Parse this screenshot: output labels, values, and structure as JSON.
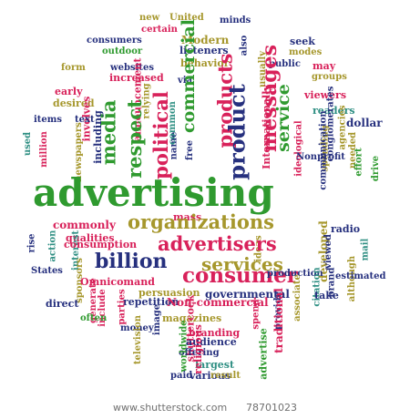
{
  "palette": {
    "green": "#2f9a2f",
    "red": "#d8215a",
    "blue": "#26307e",
    "olive": "#a6972c",
    "teal": "#2f8f83"
  },
  "words": [
    {
      "text": "new",
      "c": "olive"
    },
    {
      "text": "United",
      "c": "olive"
    },
    {
      "text": "minds",
      "c": "blue"
    },
    {
      "text": "certain",
      "c": "red"
    },
    {
      "text": "consumers",
      "c": "blue"
    },
    {
      "text": "Modern",
      "c": "olive"
    },
    {
      "text": "seek",
      "c": "blue"
    },
    {
      "text": "outdoor",
      "c": "green"
    },
    {
      "text": "listeners",
      "c": "blue"
    },
    {
      "text": "modes",
      "c": "olive"
    },
    {
      "text": "websites",
      "c": "blue"
    },
    {
      "text": "behavior",
      "c": "olive"
    },
    {
      "text": "also",
      "c": "blue"
    },
    {
      "text": "public",
      "c": "blue"
    },
    {
      "text": "may",
      "c": "red"
    },
    {
      "text": "form",
      "c": "olive"
    },
    {
      "text": "increased",
      "c": "red"
    },
    {
      "text": "groups",
      "c": "olive"
    },
    {
      "text": "usually",
      "c": "olive"
    },
    {
      "text": "via",
      "c": "blue"
    },
    {
      "text": "viewers",
      "c": "red"
    },
    {
      "text": "early",
      "c": "red"
    },
    {
      "text": "desired",
      "c": "olive"
    },
    {
      "text": "involves",
      "c": "red"
    },
    {
      "text": "commercial",
      "c": "green"
    },
    {
      "text": "messages",
      "c": "red"
    },
    {
      "text": "products",
      "c": "red"
    },
    {
      "text": "readers",
      "c": "teal"
    },
    {
      "text": "items",
      "c": "blue"
    },
    {
      "text": "text",
      "c": "blue"
    },
    {
      "text": "announcement",
      "c": "red"
    },
    {
      "text": "media",
      "c": "green"
    },
    {
      "text": "relying",
      "c": "olive"
    },
    {
      "text": "name",
      "c": "blue"
    },
    {
      "text": "Internationally",
      "c": "red"
    },
    {
      "text": "dollar",
      "c": "blue"
    },
    {
      "text": "agencies",
      "c": "olive"
    },
    {
      "text": "used",
      "c": "teal"
    },
    {
      "text": "including",
      "c": "blue"
    },
    {
      "text": "respect",
      "c": "green"
    },
    {
      "text": "political",
      "c": "red"
    },
    {
      "text": "common",
      "c": "teal"
    },
    {
      "text": "product",
      "c": "blue"
    },
    {
      "text": "service",
      "c": "green"
    },
    {
      "text": "conglomerates",
      "c": "blue"
    },
    {
      "text": "ideological",
      "c": "red"
    },
    {
      "text": "spending",
      "c": "olive"
    },
    {
      "text": "needed",
      "c": "olive"
    },
    {
      "text": "effort",
      "c": "green"
    },
    {
      "text": "million",
      "c": "red"
    },
    {
      "text": "newspapers",
      "c": "olive"
    },
    {
      "text": "free",
      "c": "blue"
    },
    {
      "text": "communication",
      "c": "blue"
    },
    {
      "text": "Nonprofit",
      "c": "blue"
    },
    {
      "text": "drive",
      "c": "green"
    },
    {
      "text": "advertising",
      "c": "green"
    },
    {
      "text": "mass",
      "c": "red"
    },
    {
      "text": "radio",
      "c": "blue"
    },
    {
      "text": "commonly",
      "c": "red"
    },
    {
      "text": "organizations",
      "c": "olive"
    },
    {
      "text": "rise",
      "c": "blue"
    },
    {
      "text": "action",
      "c": "teal"
    },
    {
      "text": "qualities",
      "c": "red"
    },
    {
      "text": "interest",
      "c": "teal"
    },
    {
      "text": "ideas",
      "c": "olive"
    },
    {
      "text": "developed",
      "c": "olive"
    },
    {
      "text": "viewed",
      "c": "blue"
    },
    {
      "text": "mail",
      "c": "teal"
    },
    {
      "text": "consumption",
      "c": "red"
    },
    {
      "text": "advertisers",
      "c": "red"
    },
    {
      "text": "billion",
      "c": "blue"
    },
    {
      "text": "services",
      "c": "olive"
    },
    {
      "text": "States",
      "c": "blue"
    },
    {
      "text": "sponsors",
      "c": "olive"
    },
    {
      "text": "consumer",
      "c": "red"
    },
    {
      "text": "Omnicomand",
      "c": "red"
    },
    {
      "text": "persuasion",
      "c": "olive"
    },
    {
      "text": "governmental",
      "c": "blue"
    },
    {
      "text": "production",
      "c": "blue"
    },
    {
      "text": "citation",
      "c": "teal"
    },
    {
      "text": "brand",
      "c": "blue"
    },
    {
      "text": "although",
      "c": "olive"
    },
    {
      "text": "estimated",
      "c": "blue"
    },
    {
      "text": "take",
      "c": "blue"
    },
    {
      "text": "direct",
      "c": "blue"
    },
    {
      "text": "generate",
      "c": "red"
    },
    {
      "text": "repetition",
      "c": "blue"
    },
    {
      "text": "Non-commercial",
      "c": "red"
    },
    {
      "text": "associate",
      "c": "olive"
    },
    {
      "text": "include",
      "c": "red"
    },
    {
      "text": "parties",
      "c": "red"
    },
    {
      "text": "magazines",
      "c": "olive"
    },
    {
      "text": "provide",
      "c": "blue"
    },
    {
      "text": "often",
      "c": "green"
    },
    {
      "text": "money",
      "c": "blue"
    },
    {
      "text": "image",
      "c": "blue"
    },
    {
      "text": "shuttercock",
      "c": "red"
    },
    {
      "text": "branding",
      "c": "red"
    },
    {
      "text": "audience",
      "c": "blue"
    },
    {
      "text": "spend",
      "c": "red"
    },
    {
      "text": "traditional",
      "c": "red"
    },
    {
      "text": "offering",
      "c": "blue"
    },
    {
      "text": "largest",
      "c": "teal"
    },
    {
      "text": "various",
      "c": "blue"
    },
    {
      "text": "television",
      "c": "olive"
    },
    {
      "text": "worldwide",
      "c": "green"
    },
    {
      "text": "religious",
      "c": "red"
    },
    {
      "text": "advertise",
      "c": "green"
    },
    {
      "text": "paid",
      "c": "blue"
    },
    {
      "text": "result",
      "c": "olive"
    }
  ],
  "footer": {
    "site": "www.shutterstock.com",
    "id": "78701023"
  }
}
